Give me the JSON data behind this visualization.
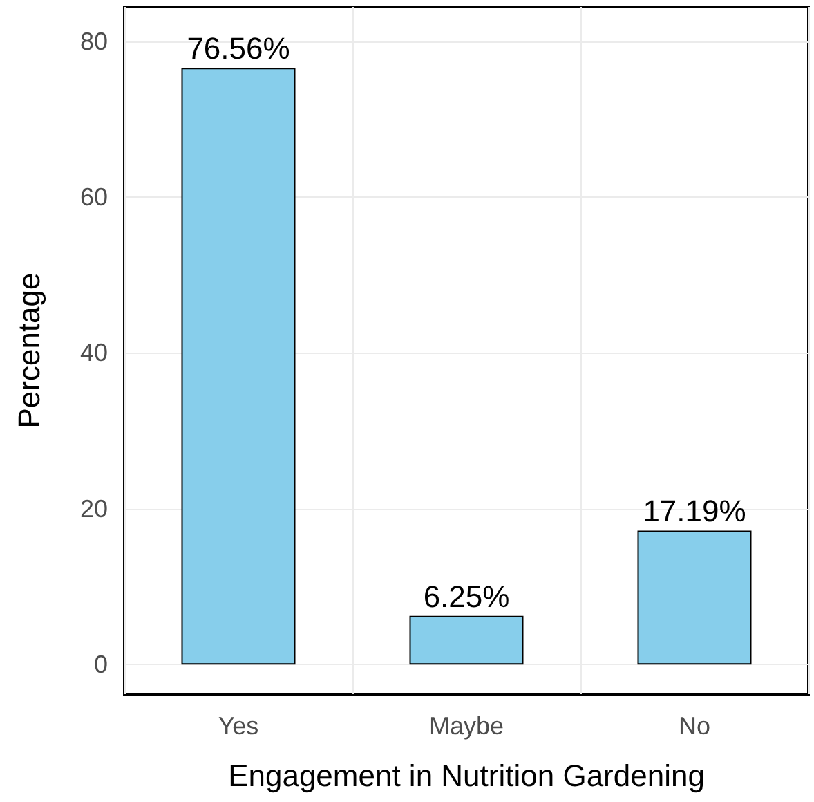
{
  "chart_data": {
    "type": "bar",
    "xlabel": "Engagement in Nutrition Gardening",
    "ylabel": "Percentage",
    "categories": [
      "Yes",
      "Maybe",
      "No"
    ],
    "values": [
      76.56,
      6.25,
      17.19
    ],
    "color": "#87ceeb",
    "value_labels": [
      "76.56%",
      "6.25%",
      "17.19%"
    ],
    "ylim": [
      -3.8,
      84.4
    ],
    "yticks": [
      0,
      20,
      40,
      60,
      80
    ],
    "grid": true
  }
}
